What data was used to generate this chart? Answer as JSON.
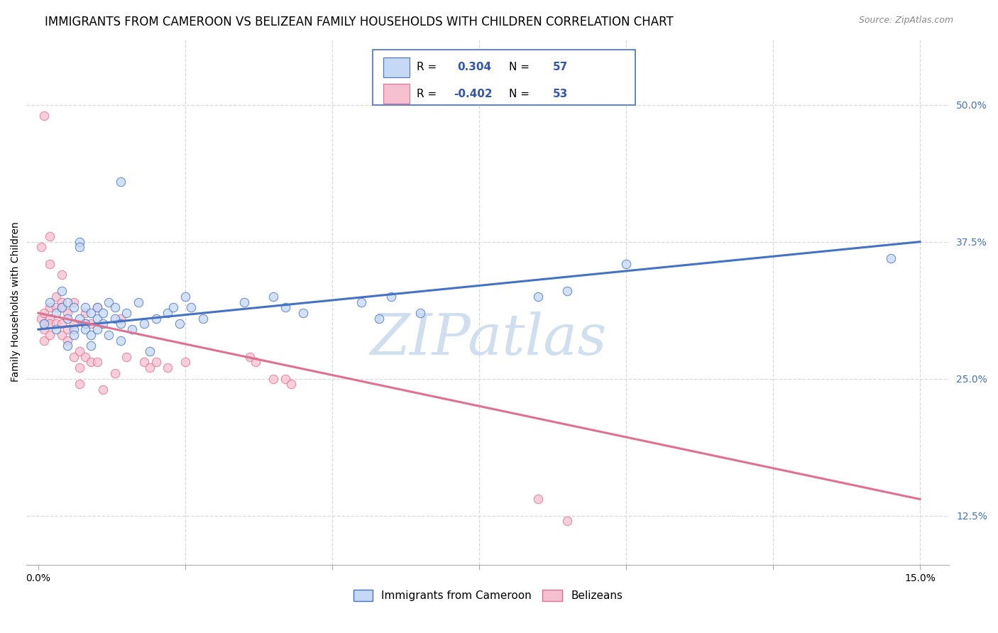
{
  "title": "IMMIGRANTS FROM CAMEROON VS BELIZEAN FAMILY HOUSEHOLDS WITH CHILDREN CORRELATION CHART",
  "source": "Source: ZipAtlas.com",
  "ylabel_label": "Family Households with Children",
  "watermark": "ZIPatlas",
  "blue_scatter": [
    [
      0.001,
      0.3
    ],
    [
      0.002,
      0.32
    ],
    [
      0.003,
      0.31
    ],
    [
      0.003,
      0.295
    ],
    [
      0.004,
      0.33
    ],
    [
      0.004,
      0.315
    ],
    [
      0.005,
      0.28
    ],
    [
      0.005,
      0.305
    ],
    [
      0.005,
      0.32
    ],
    [
      0.006,
      0.295
    ],
    [
      0.006,
      0.315
    ],
    [
      0.006,
      0.29
    ],
    [
      0.007,
      0.375
    ],
    [
      0.007,
      0.37
    ],
    [
      0.007,
      0.305
    ],
    [
      0.008,
      0.3
    ],
    [
      0.008,
      0.315
    ],
    [
      0.008,
      0.295
    ],
    [
      0.009,
      0.31
    ],
    [
      0.009,
      0.29
    ],
    [
      0.009,
      0.28
    ],
    [
      0.01,
      0.305
    ],
    [
      0.01,
      0.315
    ],
    [
      0.01,
      0.295
    ],
    [
      0.011,
      0.3
    ],
    [
      0.011,
      0.31
    ],
    [
      0.012,
      0.32
    ],
    [
      0.012,
      0.29
    ],
    [
      0.013,
      0.305
    ],
    [
      0.013,
      0.315
    ],
    [
      0.014,
      0.3
    ],
    [
      0.014,
      0.285
    ],
    [
      0.014,
      0.43
    ],
    [
      0.015,
      0.31
    ],
    [
      0.016,
      0.295
    ],
    [
      0.017,
      0.32
    ],
    [
      0.018,
      0.3
    ],
    [
      0.019,
      0.275
    ],
    [
      0.02,
      0.305
    ],
    [
      0.022,
      0.31
    ],
    [
      0.023,
      0.315
    ],
    [
      0.024,
      0.3
    ],
    [
      0.025,
      0.325
    ],
    [
      0.026,
      0.315
    ],
    [
      0.028,
      0.305
    ],
    [
      0.035,
      0.32
    ],
    [
      0.04,
      0.325
    ],
    [
      0.042,
      0.315
    ],
    [
      0.045,
      0.31
    ],
    [
      0.055,
      0.32
    ],
    [
      0.058,
      0.305
    ],
    [
      0.06,
      0.325
    ],
    [
      0.065,
      0.31
    ],
    [
      0.085,
      0.325
    ],
    [
      0.09,
      0.33
    ],
    [
      0.1,
      0.355
    ],
    [
      0.145,
      0.36
    ]
  ],
  "pink_scatter": [
    [
      0.0005,
      0.37
    ],
    [
      0.0005,
      0.305
    ],
    [
      0.001,
      0.49
    ],
    [
      0.001,
      0.31
    ],
    [
      0.001,
      0.3
    ],
    [
      0.001,
      0.295
    ],
    [
      0.001,
      0.285
    ],
    [
      0.002,
      0.38
    ],
    [
      0.002,
      0.355
    ],
    [
      0.002,
      0.315
    ],
    [
      0.002,
      0.305
    ],
    [
      0.002,
      0.3
    ],
    [
      0.002,
      0.29
    ],
    [
      0.003,
      0.325
    ],
    [
      0.003,
      0.315
    ],
    [
      0.003,
      0.3
    ],
    [
      0.004,
      0.345
    ],
    [
      0.004,
      0.32
    ],
    [
      0.004,
      0.315
    ],
    [
      0.004,
      0.3
    ],
    [
      0.004,
      0.29
    ],
    [
      0.005,
      0.31
    ],
    [
      0.005,
      0.295
    ],
    [
      0.005,
      0.285
    ],
    [
      0.006,
      0.32
    ],
    [
      0.006,
      0.3
    ],
    [
      0.006,
      0.27
    ],
    [
      0.007,
      0.275
    ],
    [
      0.007,
      0.26
    ],
    [
      0.007,
      0.245
    ],
    [
      0.008,
      0.31
    ],
    [
      0.008,
      0.3
    ],
    [
      0.008,
      0.27
    ],
    [
      0.009,
      0.3
    ],
    [
      0.009,
      0.265
    ],
    [
      0.01,
      0.315
    ],
    [
      0.01,
      0.265
    ],
    [
      0.011,
      0.24
    ],
    [
      0.013,
      0.255
    ],
    [
      0.014,
      0.305
    ],
    [
      0.015,
      0.27
    ],
    [
      0.018,
      0.265
    ],
    [
      0.019,
      0.26
    ],
    [
      0.02,
      0.265
    ],
    [
      0.022,
      0.26
    ],
    [
      0.025,
      0.265
    ],
    [
      0.036,
      0.27
    ],
    [
      0.037,
      0.265
    ],
    [
      0.04,
      0.25
    ],
    [
      0.042,
      0.25
    ],
    [
      0.043,
      0.245
    ],
    [
      0.085,
      0.14
    ],
    [
      0.09,
      0.12
    ]
  ],
  "blue_line": {
    "x": [
      0.0,
      0.15
    ],
    "y": [
      0.295,
      0.375
    ]
  },
  "pink_line": {
    "x": [
      0.0,
      0.15
    ],
    "y": [
      0.31,
      0.14
    ]
  },
  "xlim": [
    -0.002,
    0.155
  ],
  "ylim": [
    0.08,
    0.56
  ],
  "xticks": [
    0.0,
    0.025,
    0.05,
    0.075,
    0.1,
    0.125,
    0.15
  ],
  "xtick_labels": [
    "0.0%",
    "",
    "",
    "",
    "",
    "",
    "15.0%"
  ],
  "yticks_right": [
    0.125,
    0.25,
    0.375,
    0.5
  ],
  "ytick_labels_right": [
    "12.5%",
    "25.0%",
    "37.5%",
    "50.0%"
  ],
  "background_color": "#ffffff",
  "grid_color": "#d8d8d8",
  "blue_dot_color": "#c5d8f5",
  "pink_dot_color": "#f5c0d0",
  "blue_line_color": "#4472c4",
  "pink_line_color": "#e07090",
  "title_fontsize": 12,
  "axis_label_fontsize": 10,
  "tick_fontsize": 10,
  "legend_fontsize": 11,
  "watermark_color": "#d0dff0",
  "watermark_fontsize": 58,
  "dot_size": 80,
  "dot_alpha": 0.75,
  "legend_R1": "R =  0.304",
  "legend_N1": "N = 57",
  "legend_R2": "R = -0.402",
  "legend_N2": "N = 53",
  "legend_color_R": "#3355bb",
  "legend_color_N": "#3355bb",
  "bottom_legend_labels": [
    "Immigrants from Cameroon",
    "Belizeans"
  ]
}
